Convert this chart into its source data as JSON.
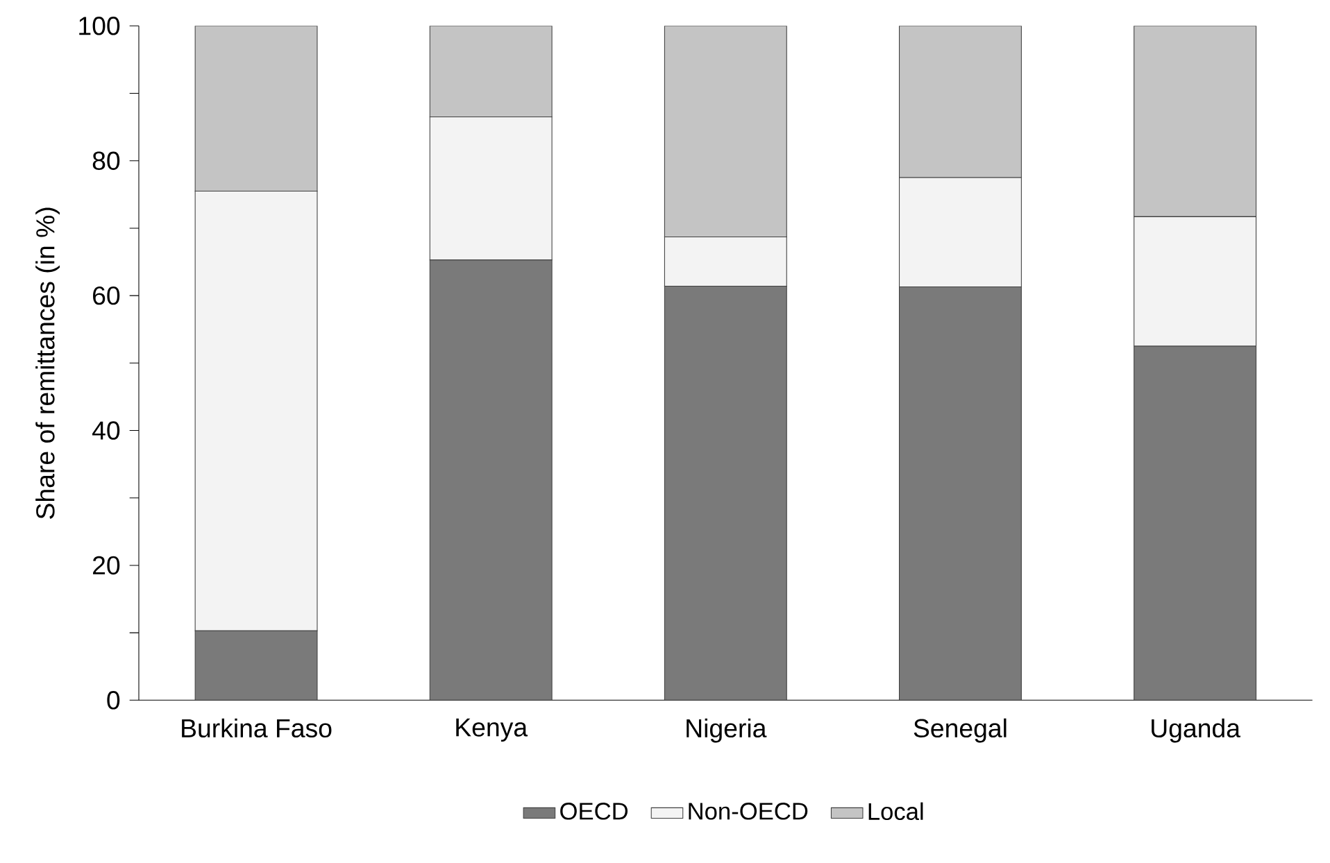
{
  "chart_data": {
    "type": "bar",
    "stacked": true,
    "ylabel": "Share of remittances (in %)",
    "categories": [
      "Burkina Faso",
      "Kenya",
      "Nigeria",
      "Senegal",
      "Uganda"
    ],
    "series": [
      {
        "name": "OECD",
        "color": "#7a7a7a",
        "values": [
          10.3,
          65.3,
          61.4,
          61.3,
          52.5
        ]
      },
      {
        "name": "Non-OECD",
        "color": "#f3f3f3",
        "values": [
          65.2,
          21.2,
          7.3,
          16.2,
          19.2
        ]
      },
      {
        "name": "Local",
        "color": "#c4c4c4",
        "values": [
          24.5,
          13.5,
          31.3,
          22.5,
          28.3
        ]
      }
    ],
    "ylim": [
      0,
      100
    ],
    "yticks": [
      0,
      20,
      40,
      60,
      80,
      100
    ],
    "legend": "bottom"
  }
}
